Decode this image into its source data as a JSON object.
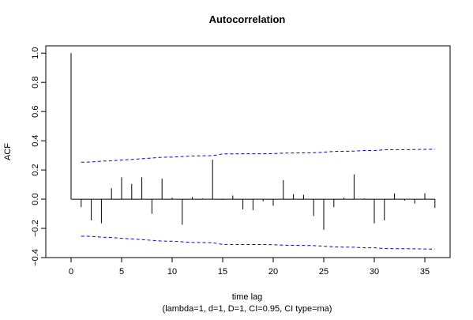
{
  "chart_data": {
    "type": "bar",
    "title": "Autocorrelation",
    "xlabel": "time lag",
    "subtitle": "(lambda=1, d=1, D=1, CI=0.95, CI type=ma)",
    "ylabel": "ACF",
    "xlim": [
      -2.5,
      37.5
    ],
    "ylim": [
      -0.4,
      1.05
    ],
    "x_ticks": [
      0,
      5,
      10,
      15,
      20,
      25,
      30,
      35
    ],
    "x_tick_labels": [
      "0",
      "5",
      "10",
      "15",
      "20",
      "25",
      "30",
      "35"
    ],
    "y_ticks": [
      -0.4,
      -0.2,
      0.0,
      0.2,
      0.4,
      0.6,
      0.8,
      1.0
    ],
    "y_tick_labels": [
      "−0.4",
      "−0.2",
      "0.0",
      "0.2",
      "0.4",
      "0.6",
      "0.8",
      "1.0"
    ],
    "lags": [
      0,
      1,
      2,
      3,
      4,
      5,
      6,
      7,
      8,
      9,
      10,
      11,
      12,
      13,
      14,
      15,
      16,
      17,
      18,
      19,
      20,
      21,
      22,
      23,
      24,
      25,
      26,
      27,
      28,
      29,
      30,
      31,
      32,
      33,
      34,
      35,
      36
    ],
    "acf": [
      1.0,
      -0.055,
      -0.145,
      -0.165,
      0.075,
      0.15,
      0.105,
      0.15,
      -0.1,
      0.14,
      0.01,
      -0.175,
      0.015,
      0.005,
      0.27,
      -0.005,
      0.025,
      -0.07,
      -0.075,
      -0.015,
      -0.045,
      0.13,
      0.035,
      0.03,
      -0.115,
      -0.21,
      -0.055,
      0.01,
      0.17,
      0.005,
      -0.165,
      -0.145,
      0.04,
      -0.01,
      -0.03,
      0.04,
      -0.06
    ],
    "ci_upper": [
      0.253,
      0.255,
      0.26,
      0.263,
      0.268,
      0.272,
      0.277,
      0.282,
      0.287,
      0.288,
      0.292,
      0.296,
      0.297,
      0.298,
      0.31,
      0.31,
      0.311,
      0.311,
      0.311,
      0.312,
      0.315,
      0.316,
      0.317,
      0.318,
      0.322,
      0.327,
      0.328,
      0.329,
      0.333,
      0.333,
      0.338,
      0.339,
      0.339,
      0.34,
      0.341,
      0.342
    ],
    "ci_lower": [
      -0.253,
      -0.255,
      -0.26,
      -0.263,
      -0.268,
      -0.272,
      -0.277,
      -0.282,
      -0.287,
      -0.288,
      -0.292,
      -0.296,
      -0.297,
      -0.298,
      -0.31,
      -0.31,
      -0.311,
      -0.311,
      -0.311,
      -0.312,
      -0.315,
      -0.316,
      -0.317,
      -0.318,
      -0.322,
      -0.327,
      -0.328,
      -0.329,
      -0.333,
      -0.333,
      -0.338,
      -0.339,
      -0.339,
      -0.34,
      -0.341,
      -0.342
    ],
    "ci_lags_start": 1,
    "colors": {
      "bars": "#000000",
      "ci": "#0000ff",
      "zero_line": "#000000",
      "frame": "#000000"
    },
    "grid": false
  }
}
